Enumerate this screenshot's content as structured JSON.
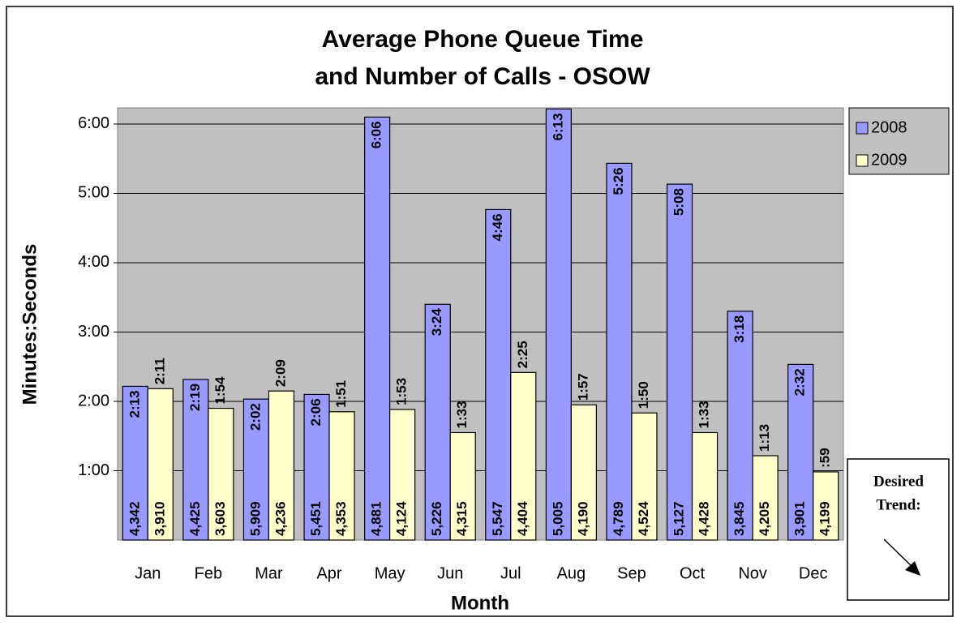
{
  "chart_data": {
    "type": "bar",
    "title": [
      "Average Phone Queue Time",
      "and Number of Calls - OSOW"
    ],
    "x_label": "Month",
    "y_label": "Minutes:Seconds",
    "annotation": [
      "Desired",
      "Trend:"
    ],
    "categories": [
      "Jan",
      "Feb",
      "Mar",
      "Apr",
      "May",
      "Jun",
      "Jul",
      "Aug",
      "Sep",
      "Oct",
      "Nov",
      "Dec"
    ],
    "series": [
      {
        "name": "2008",
        "color": "#9999ff",
        "values": [
          133,
          139,
          122,
          126,
          366,
          204,
          286,
          373,
          326,
          308,
          198,
          152
        ],
        "value_labels": [
          "2:13",
          "2:19",
          "2:02",
          "2:06",
          "6:06",
          "3:24",
          "4:46",
          "6:13",
          "5:26",
          "5:08",
          "3:18",
          "2:32"
        ],
        "calls": [
          {
            "value": 4342,
            "label": "4,342"
          },
          {
            "value": 4425,
            "label": "4,425"
          },
          {
            "value": 5909,
            "label": "5,909"
          },
          {
            "value": 5451,
            "label": "5,451"
          },
          {
            "value": 4881,
            "label": "4,881"
          },
          {
            "value": 5226,
            "label": "5,226"
          },
          {
            "value": 5547,
            "label": "5,547"
          },
          {
            "value": 5005,
            "label": "5,005"
          },
          {
            "value": 4789,
            "label": "4,789"
          },
          {
            "value": 5127,
            "label": "5,127"
          },
          {
            "value": 3845,
            "label": "3,845"
          },
          {
            "value": 3901,
            "label": "3,901"
          }
        ]
      },
      {
        "name": "2009",
        "color": "#ffffcc",
        "values": [
          131,
          114,
          129,
          111,
          113,
          93,
          145,
          117,
          110,
          93,
          73,
          59
        ],
        "value_labels": [
          "2:11",
          "1:54",
          "2:09",
          "1:51",
          "1:53",
          "1:33",
          "2:25",
          "1:57",
          "1:50",
          "1:33",
          "1:13",
          ":59"
        ],
        "calls": [
          {
            "value": 3910,
            "label": "3,910"
          },
          {
            "value": 3603,
            "label": "3,603"
          },
          {
            "value": 4236,
            "label": "4,236"
          },
          {
            "value": 4353,
            "label": "4,353"
          },
          {
            "value": 4124,
            "label": "4,124"
          },
          {
            "value": 4315,
            "label": "4,315"
          },
          {
            "value": 4404,
            "label": "4,404"
          },
          {
            "value": 4190,
            "label": "4,190"
          },
          {
            "value": 4524,
            "label": "4,524"
          },
          {
            "value": 4428,
            "label": "4,428"
          },
          {
            "value": 4205,
            "label": "4,205"
          },
          {
            "value": 4199,
            "label": "4,199"
          }
        ]
      }
    ],
    "ylim": [
      0,
      374
    ],
    "yticks": [
      {
        "value": 60,
        "label": "1:00"
      },
      {
        "value": 120,
        "label": "2:00"
      },
      {
        "value": 180,
        "label": "3:00"
      },
      {
        "value": 240,
        "label": "4:00"
      },
      {
        "value": 300,
        "label": "5:00"
      },
      {
        "value": 360,
        "label": "6:00"
      }
    ],
    "grid": true,
    "legend": "right"
  }
}
